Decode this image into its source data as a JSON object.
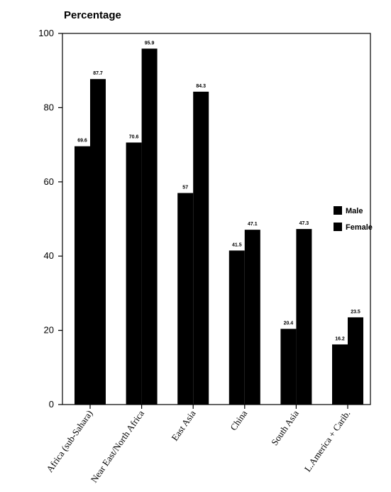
{
  "chart_data": {
    "type": "bar",
    "title": "Percentage",
    "categories": [
      "Africa (sub-Sahara)",
      "Near East/North Africa",
      "East Asia",
      "China",
      "South Asia",
      "L.America + Carib."
    ],
    "series": [
      {
        "name": "Male",
        "values": [
          69.6,
          70.6,
          57,
          41.5,
          20.4,
          16.2
        ],
        "labels": [
          "69.6",
          "70.6",
          "57",
          "41.5",
          "20.4",
          "16.2"
        ]
      },
      {
        "name": "Female",
        "values": [
          87.7,
          95.9,
          84.3,
          47.1,
          47.3,
          23.5
        ],
        "labels": [
          "87.7",
          "95.9",
          "84.3",
          "47.1",
          "47.3",
          "23.5"
        ]
      }
    ],
    "ylim": [
      0,
      100
    ],
    "yticks": [
      "0",
      "20",
      "40",
      "60",
      "80",
      "100"
    ],
    "grid": false,
    "legend": "right",
    "colors": {
      "bar": "#000000",
      "axis": "#000000",
      "background": "#ffffff"
    }
  }
}
